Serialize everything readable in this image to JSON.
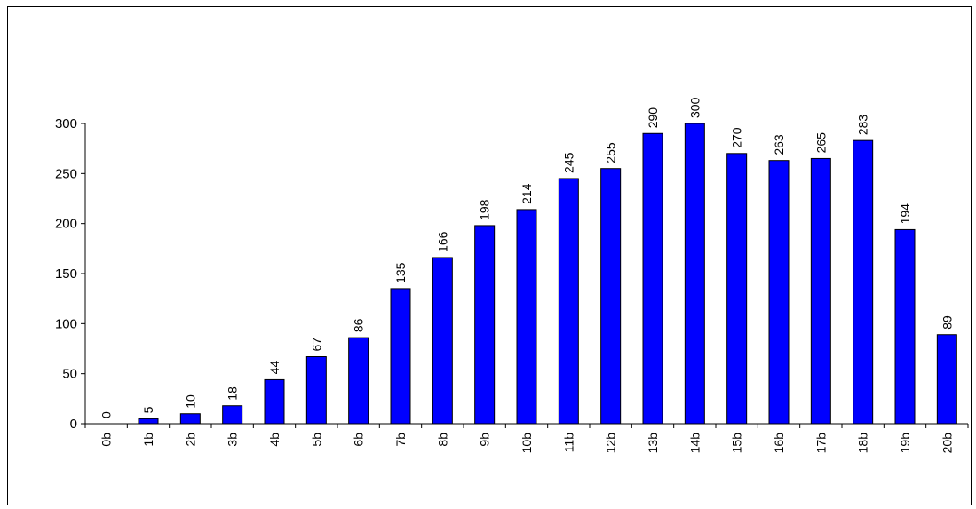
{
  "chart_data": {
    "type": "bar",
    "title": "",
    "xlabel": "",
    "ylabel": "",
    "categories": [
      "0b",
      "1b",
      "2b",
      "3b",
      "4b",
      "5b",
      "6b",
      "7b",
      "8b",
      "9b",
      "10b",
      "11b",
      "12b",
      "13b",
      "14b",
      "15b",
      "16b",
      "17b",
      "18b",
      "19b",
      "20b"
    ],
    "values": [
      0,
      5,
      10,
      18,
      44,
      67,
      86,
      135,
      166,
      198,
      214,
      245,
      255,
      290,
      300,
      270,
      263,
      265,
      283,
      194,
      89
    ],
    "ylim": [
      0,
      300
    ],
    "yticks": [
      0,
      50,
      100,
      150,
      200,
      250,
      300
    ],
    "bar_color": "#0000FF",
    "bar_edge_color": "#000000",
    "grid": false,
    "legend": "none",
    "data_labels": "rotated-vertical"
  }
}
